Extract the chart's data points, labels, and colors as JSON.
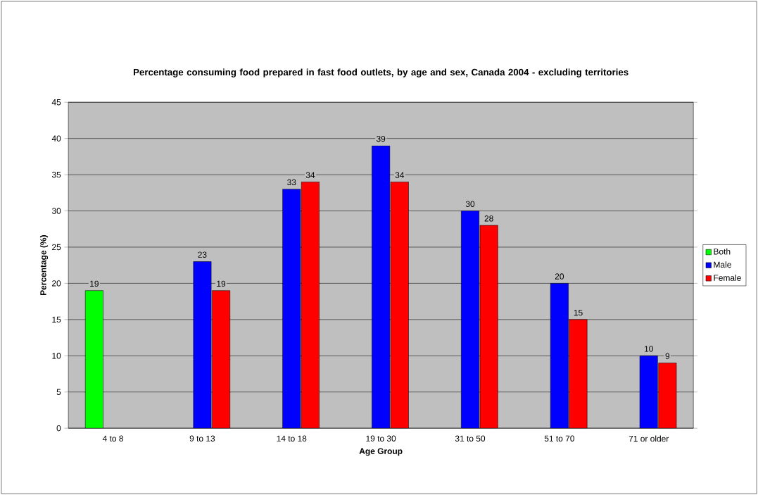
{
  "chart_data": {
    "type": "bar",
    "title": "Percentage consuming food prepared in fast food outlets, by age and sex, Canada 2004 - excluding territories",
    "xlabel": "Age Group",
    "ylabel": "Percentage (%)",
    "categories": [
      "4 to 8",
      "9 to 13",
      "14 to 18",
      "19 to 30",
      "31 to 50",
      "51 to 70",
      "71 or older"
    ],
    "series": [
      {
        "name": "Both",
        "color": "#00ff00",
        "values": [
          19,
          null,
          null,
          null,
          null,
          null,
          null
        ]
      },
      {
        "name": "Male",
        "color": "#0000ff",
        "values": [
          null,
          23,
          33,
          39,
          30,
          20,
          10
        ]
      },
      {
        "name": "Female",
        "color": "#ff0000",
        "values": [
          null,
          19,
          34,
          34,
          28,
          15,
          9
        ]
      }
    ],
    "ylim": [
      0,
      45
    ],
    "yticks": [
      0,
      5,
      10,
      15,
      20,
      25,
      30,
      35,
      40,
      45
    ],
    "grid": "y",
    "legend": "right",
    "data_labels": true
  }
}
